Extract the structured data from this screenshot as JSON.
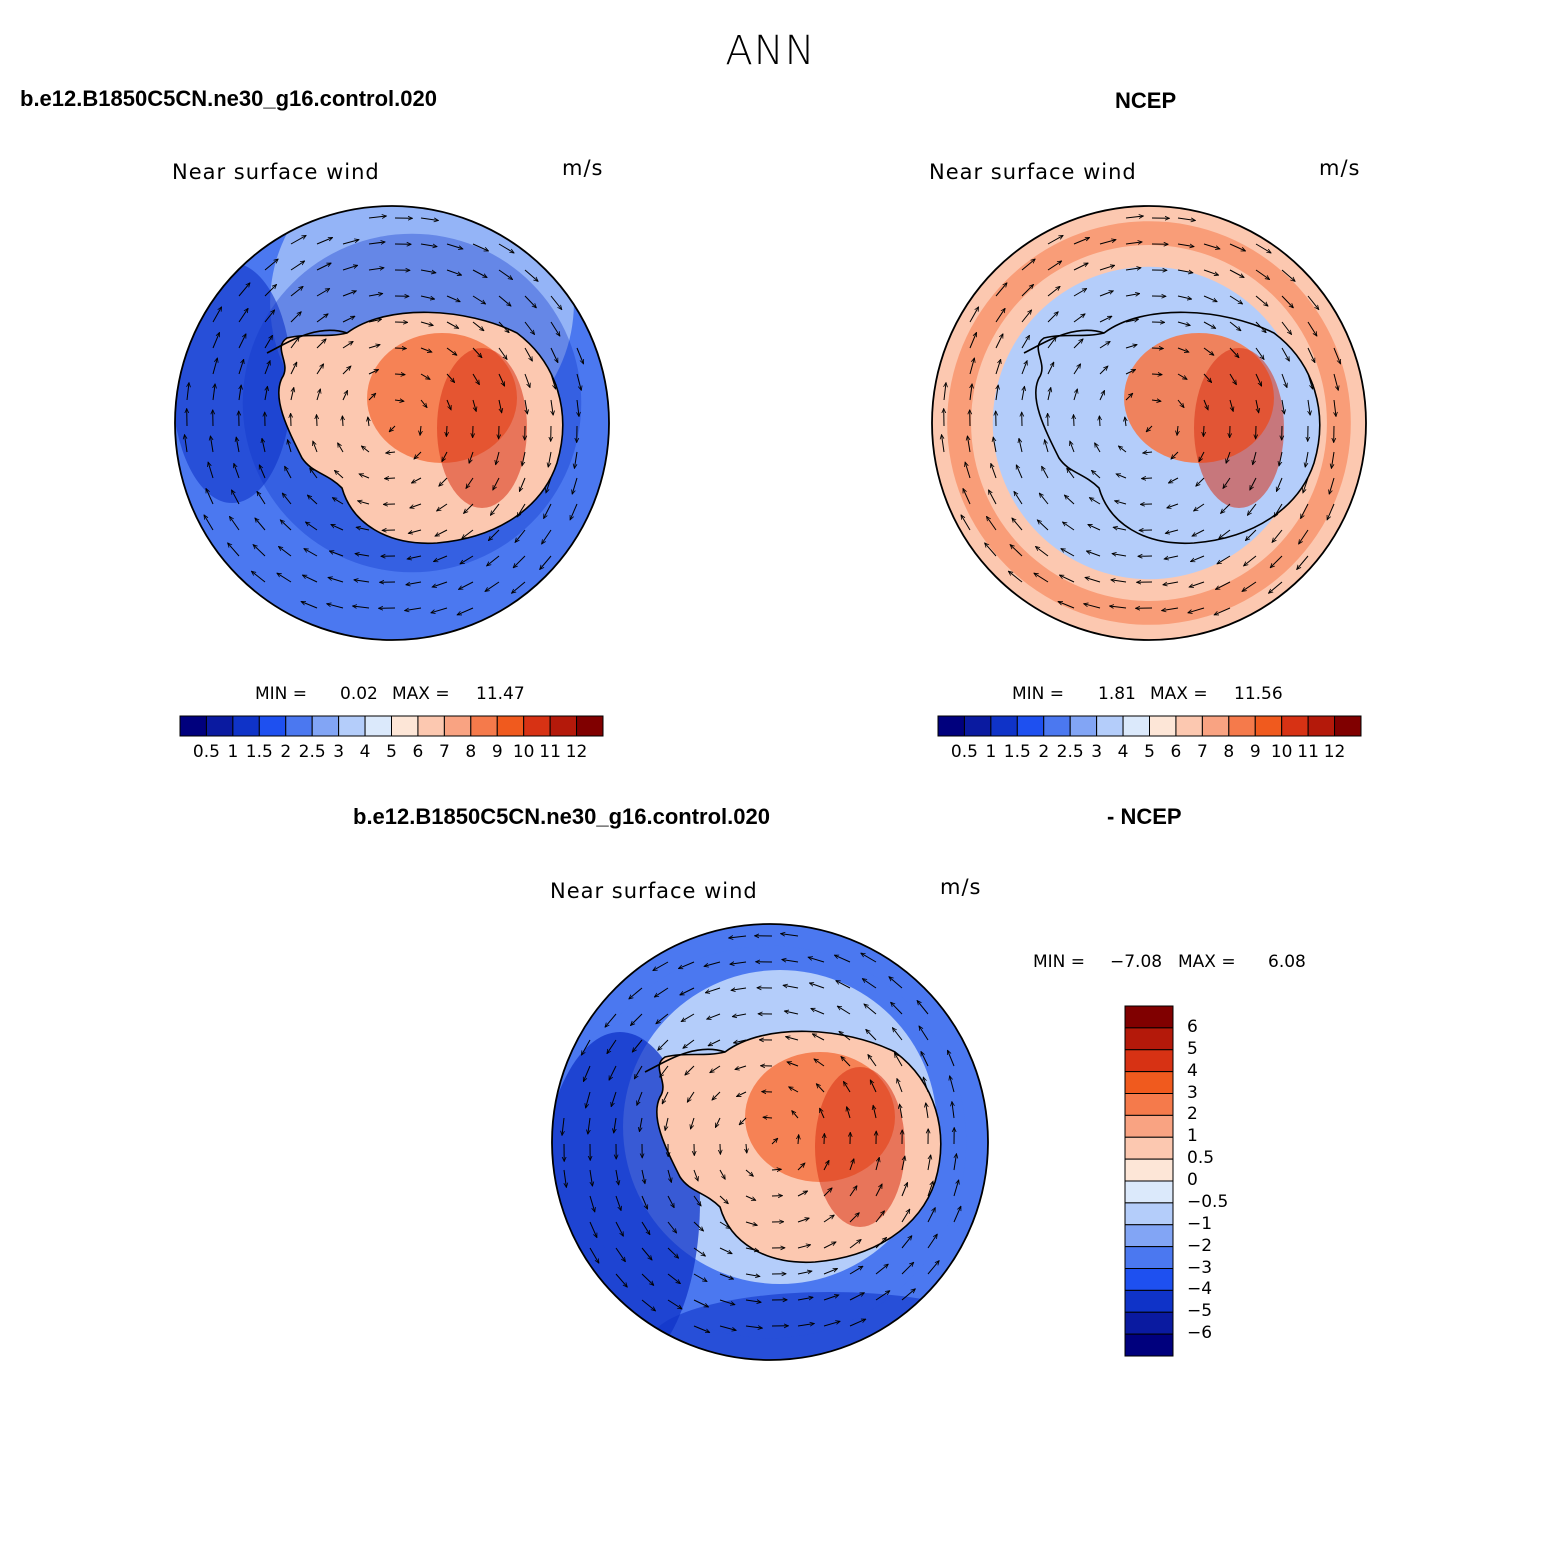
{
  "title": "ANN",
  "panels": [
    {
      "id": "model",
      "case_left": "b.e12.B1850C5CN.ne30_g16.control.020",
      "case_right": "",
      "subtitle": "Near surface wind",
      "units": "m/s",
      "min_label": "MIN =",
      "min_value": "0.02",
      "max_label": "MAX =",
      "max_value": "11.47",
      "background": "cool"
    },
    {
      "id": "obs",
      "case_left": "",
      "case_right": "NCEP",
      "subtitle": "Near surface wind",
      "units": "m/s",
      "min_label": "MIN =",
      "min_value": "1.81",
      "max_label": "MAX =",
      "max_value": "11.56",
      "background": "warm"
    },
    {
      "id": "diff",
      "case_left": "b.e12.B1850C5CN.ne30_g16.control.020",
      "case_right": "- NCEP",
      "subtitle": "Near surface wind",
      "units": "m/s",
      "min_label": "MIN =",
      "min_value": "−7.08",
      "max_label": "MAX =",
      "max_value": "6.08",
      "background": "cool"
    }
  ],
  "colorbar_horizontal": {
    "colors": [
      "#00007d",
      "#0a1aa0",
      "#0f33c8",
      "#1e50f0",
      "#4b78f0",
      "#82a5f5",
      "#b4cdfa",
      "#dbe9fb",
      "#fde6d7",
      "#fcc8b0",
      "#f9a382",
      "#f57a4b",
      "#f05a1e",
      "#d73214",
      "#b4190a",
      "#800000"
    ],
    "labels": [
      "0.5",
      "1",
      "1.5",
      "2",
      "2.5",
      "3",
      "4",
      "5",
      "6",
      "7",
      "8",
      "9",
      "10",
      "11",
      "12"
    ]
  },
  "colorbar_vertical": {
    "colors_top_to_bottom": [
      "#800000",
      "#b4190a",
      "#d73214",
      "#f05a1e",
      "#f57a4b",
      "#f9a382",
      "#fcc8b0",
      "#fde6d7",
      "#dbe9fb",
      "#b4cdfa",
      "#82a5f5",
      "#4b78f0",
      "#1e50f0",
      "#0f33c8",
      "#0a1aa0",
      "#00007d"
    ],
    "labels_top_to_bottom": [
      "6",
      "5",
      "4",
      "3",
      "2",
      "1",
      "0.5",
      "0",
      "−0.5",
      "−1",
      "−2",
      "−3",
      "−4",
      "−5",
      "−6"
    ]
  },
  "colors": {
    "cool_dark": "#0f33c8",
    "cool_mid": "#4b78f0",
    "cool_light": "#b4cdfa",
    "warm_light": "#fcc8b0",
    "warm_mid": "#f57a4b",
    "warm_dark": "#d73214"
  }
}
